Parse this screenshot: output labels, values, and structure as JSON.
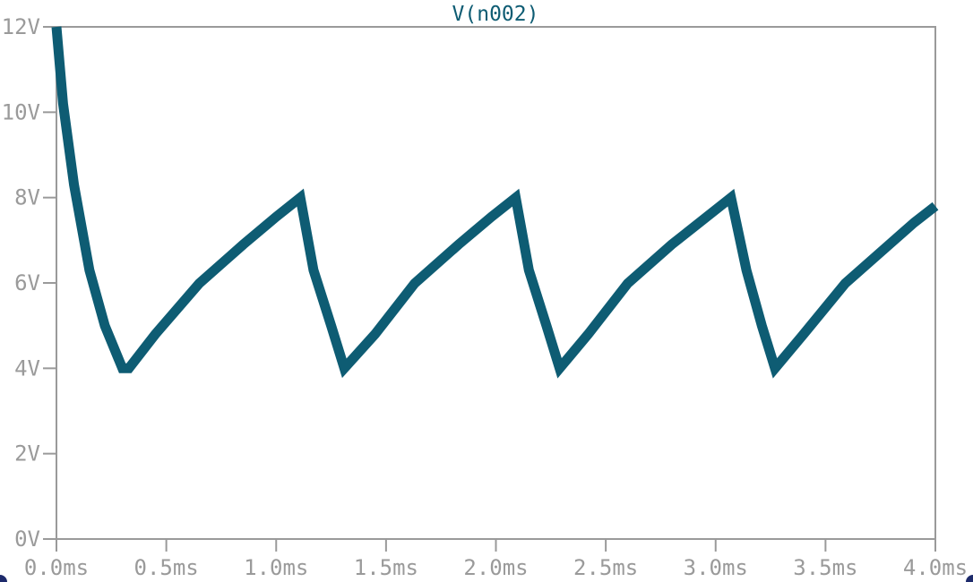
{
  "chart_data": {
    "type": "line",
    "title": "V(n002)",
    "xlabel": "",
    "ylabel": "",
    "xlim": [
      0,
      4
    ],
    "ylim": [
      0,
      12
    ],
    "x_ticks": [
      0,
      0.5,
      1.0,
      1.5,
      2.0,
      2.5,
      3.0,
      3.5,
      4.0
    ],
    "x_tick_labels": [
      "0.0ms",
      "0.5ms",
      "1.0ms",
      "1.5ms",
      "2.0ms",
      "2.5ms",
      "3.0ms",
      "3.5ms",
      "4.0ms"
    ],
    "y_ticks": [
      0,
      2,
      4,
      6,
      8,
      10,
      12
    ],
    "y_tick_labels": [
      "0V",
      "2V",
      "4V",
      "6V",
      "8V",
      "10V",
      "12V"
    ],
    "grid": false,
    "series": [
      {
        "name": "V(n002)",
        "color": "#0e5c73",
        "x": [
          0.0,
          0.03,
          0.08,
          0.15,
          0.22,
          0.3,
          0.33,
          0.45,
          0.65,
          0.85,
          1.0,
          1.11,
          1.17,
          1.25,
          1.31,
          1.45,
          1.63,
          1.83,
          1.98,
          2.09,
          2.15,
          2.23,
          2.29,
          2.42,
          2.6,
          2.8,
          2.96,
          3.07,
          3.14,
          3.21,
          3.27,
          3.4,
          3.59,
          3.79,
          3.9,
          4.0
        ],
        "values": [
          12.0,
          10.2,
          8.3,
          6.3,
          5.0,
          4.0,
          4.0,
          4.8,
          5.99,
          6.9,
          7.55,
          8.0,
          6.3,
          5.0,
          4.0,
          4.8,
          5.99,
          6.9,
          7.55,
          8.0,
          6.3,
          5.0,
          4.0,
          4.8,
          5.99,
          6.9,
          7.55,
          8.0,
          6.3,
          5.0,
          4.0,
          4.8,
          5.99,
          6.9,
          7.4,
          7.8
        ]
      }
    ]
  },
  "colors": {
    "axis": "#9a9a9a",
    "trace": "#0e5c73",
    "title": "#0e5c73",
    "background": "#ffffff"
  }
}
